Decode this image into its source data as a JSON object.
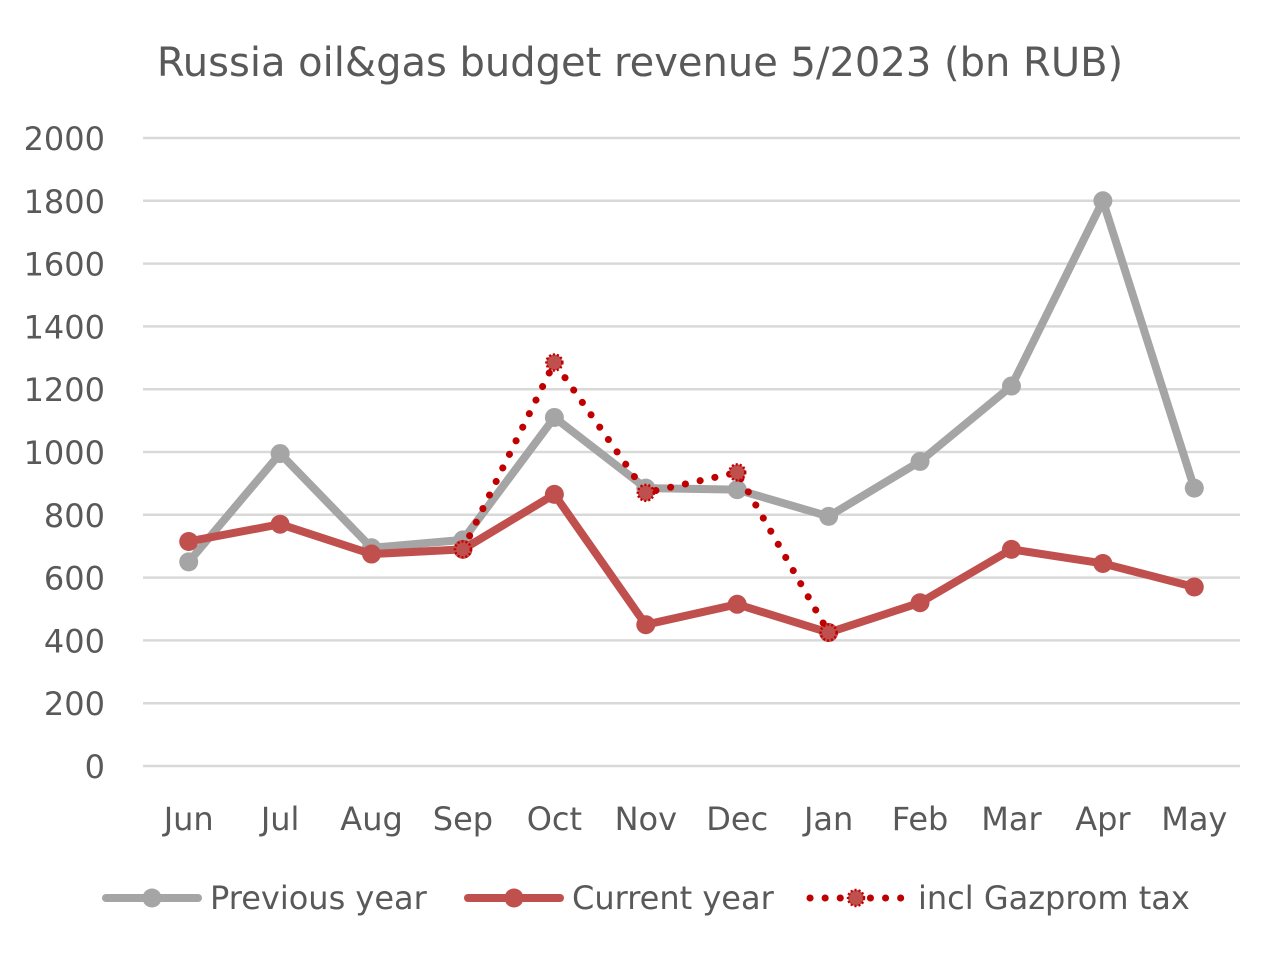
{
  "chart_data": {
    "type": "line",
    "title": "Russia oil&gas budget revenue 5/2023 (bn RUB)",
    "xlabel": "",
    "ylabel": "",
    "categories": [
      "Jun",
      "Jul",
      "Aug",
      "Sep",
      "Oct",
      "Nov",
      "Dec",
      "Jan",
      "Feb",
      "Mar",
      "Apr",
      "May"
    ],
    "ylim": [
      0,
      2000
    ],
    "yticks": [
      0,
      200,
      400,
      600,
      800,
      1000,
      1200,
      1400,
      1600,
      1800,
      2000
    ],
    "grid": true,
    "legend_position": "bottom",
    "series": [
      {
        "name": "Previous year",
        "color": "#A5A5A5",
        "style": "solid",
        "values": [
          650,
          995,
          695,
          720,
          1110,
          885,
          880,
          795,
          970,
          1210,
          1800,
          885
        ]
      },
      {
        "name": "Current year",
        "color": "#C0504D",
        "style": "solid",
        "values": [
          715,
          770,
          675,
          690,
          865,
          450,
          515,
          425,
          520,
          690,
          645,
          570
        ]
      },
      {
        "name": "incl Gazprom tax",
        "color": "#C00000",
        "style": "dotted",
        "values": [
          null,
          null,
          null,
          690,
          1285,
          870,
          935,
          425,
          null,
          null,
          null,
          null
        ]
      }
    ]
  }
}
